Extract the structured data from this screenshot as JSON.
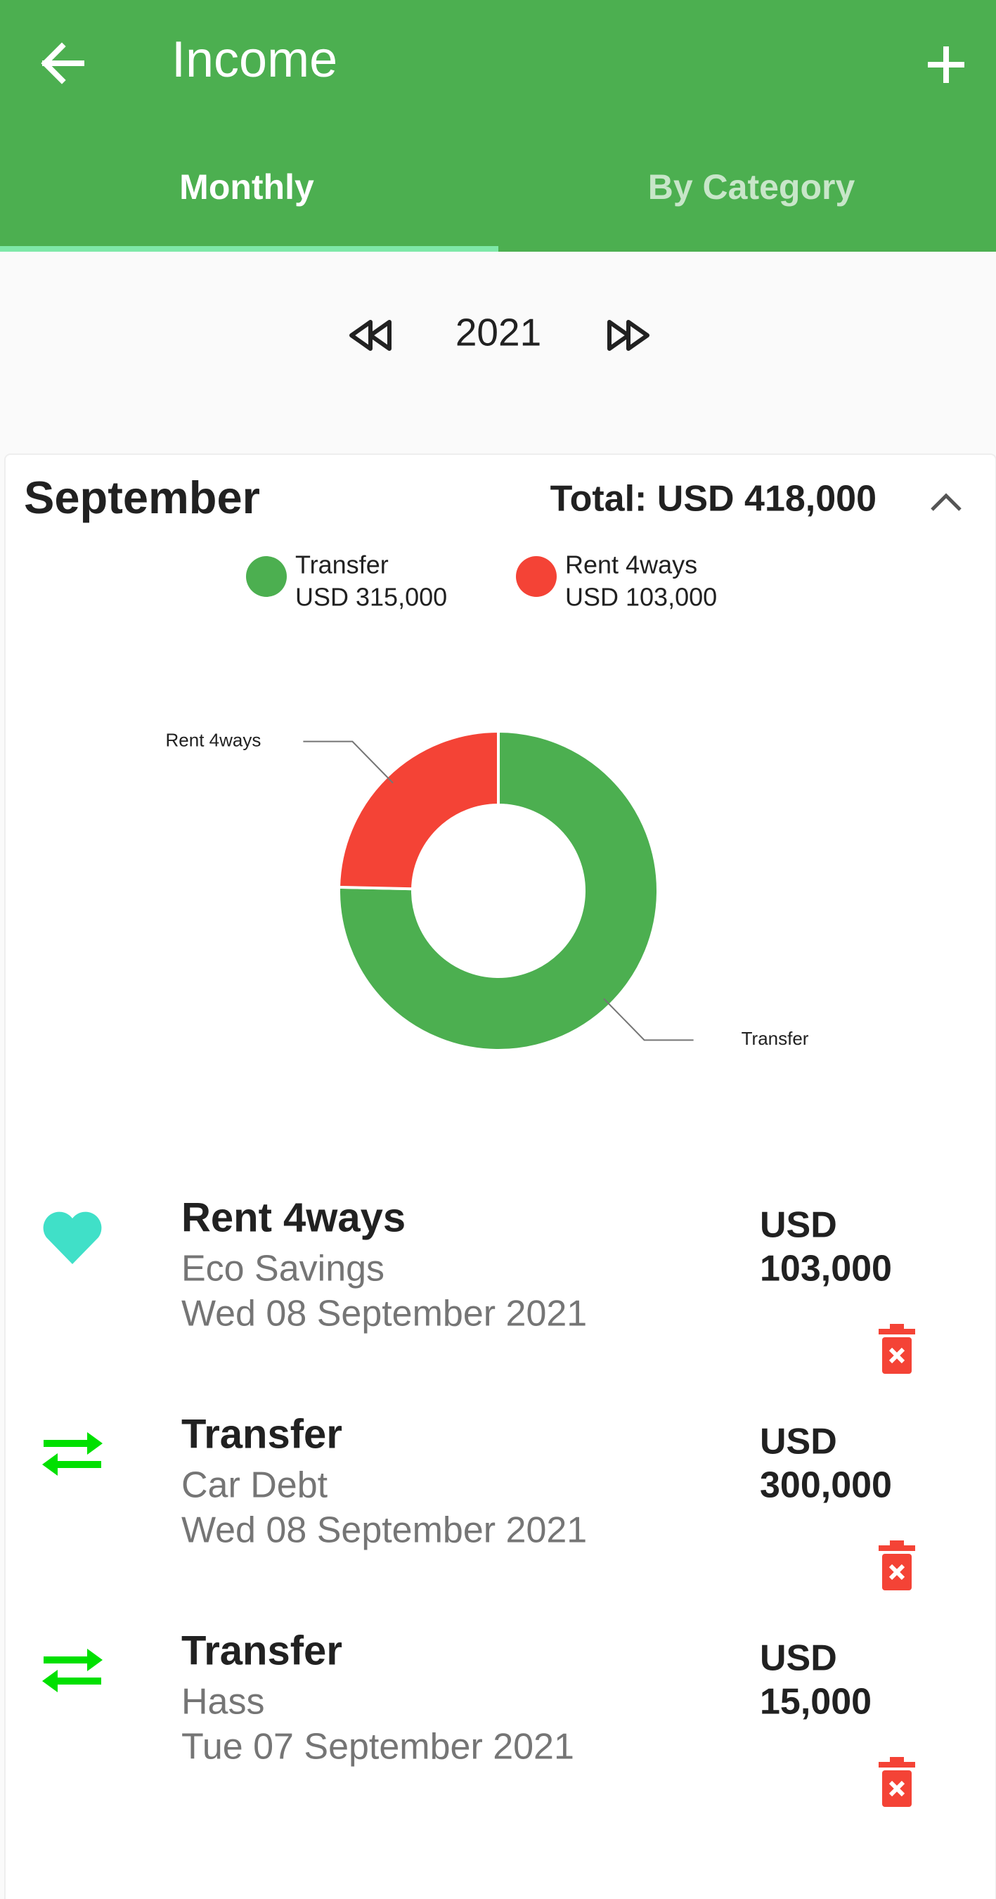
{
  "header": {
    "title": "Income"
  },
  "tabs": [
    "Monthly",
    "By Category"
  ],
  "year": "2021",
  "month": {
    "name": "September",
    "total": "Total: USD 418,000"
  },
  "chart_data": {
    "type": "pie",
    "categories": [
      "Transfer",
      "Rent 4ways"
    ],
    "values": [
      315000,
      103000
    ],
    "value_labels": [
      "USD 315,000",
      "USD 103,000"
    ],
    "colors": [
      "#4caf50",
      "#f44336"
    ],
    "hole": true
  },
  "transactions": [
    {
      "title": "Rent 4ways",
      "account": "Eco Savings",
      "date": "Wed 08 September 2021",
      "currency": "USD",
      "amount": "103,000"
    },
    {
      "title": "Transfer",
      "account": "Car Debt",
      "date": "Wed 08 September 2021",
      "currency": "USD",
      "amount": "300,000"
    },
    {
      "title": "Transfer",
      "account": "Hass",
      "date": "Tue 07 September 2021",
      "currency": "USD",
      "amount": "15,000"
    }
  ]
}
